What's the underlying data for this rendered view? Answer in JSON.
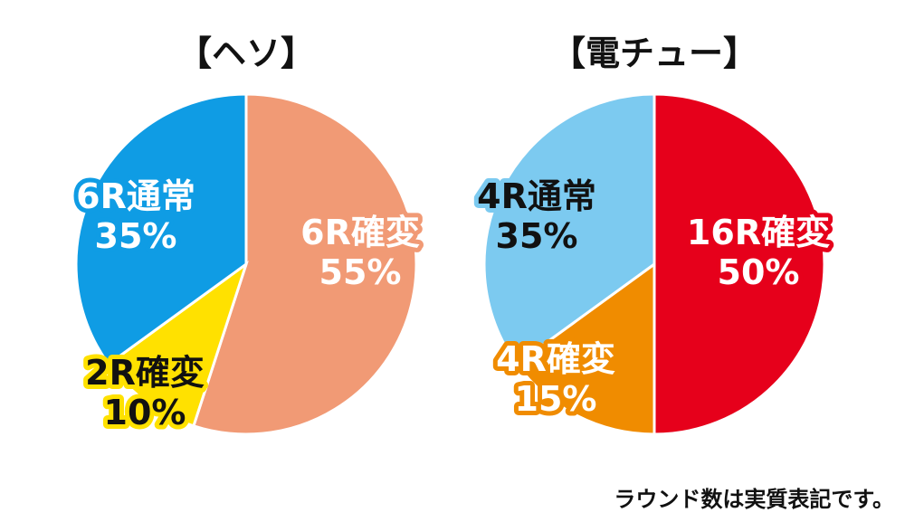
{
  "chart_data": [
    {
      "type": "pie",
      "title": "【ヘソ】",
      "slices": [
        {
          "name": "6R確変",
          "percent_label": "55%",
          "value": 55,
          "color": "#f19a75",
          "label_fill": "#ffffff",
          "label_stroke": "#f19a75"
        },
        {
          "name": "2R確変",
          "percent_label": "10%",
          "value": 10,
          "color": "#ffe100",
          "label_fill": "#111111",
          "label_stroke": "#ffe100"
        },
        {
          "name": "6R通常",
          "percent_label": "35%",
          "value": 35,
          "color": "#0f9ce4",
          "label_fill": "#ffffff",
          "label_stroke": "#0f9ce4"
        }
      ]
    },
    {
      "type": "pie",
      "title": "【電チュー】",
      "slices": [
        {
          "name": "16R確変",
          "percent_label": "50%",
          "value": 50,
          "color": "#e6001b",
          "label_fill": "#ffffff",
          "label_stroke": "#e6001b"
        },
        {
          "name": "4R確変",
          "percent_label": "15%",
          "value": 15,
          "color": "#f08c00",
          "label_fill": "#ffffff",
          "label_stroke": "#f08c00"
        },
        {
          "name": "4R通常",
          "percent_label": "35%",
          "value": 35,
          "color": "#7ccaf0",
          "label_fill": "#111111",
          "label_stroke": "#7ccaf0"
        }
      ]
    }
  ],
  "footnote": "ラウンド数は実質表記です。"
}
